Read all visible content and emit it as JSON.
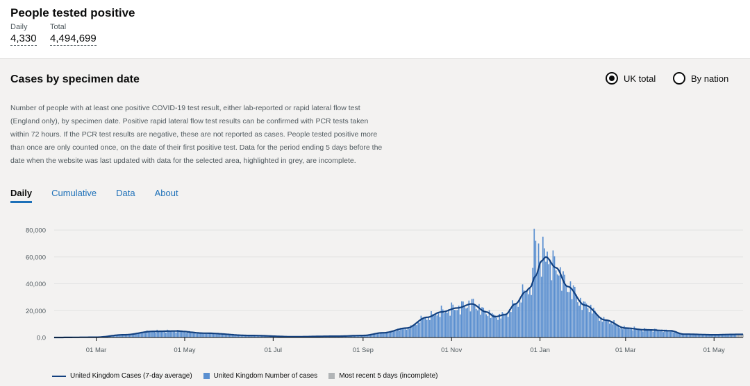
{
  "header": {
    "title": "People tested positive",
    "daily_label": "Daily",
    "daily_value": "4,330",
    "total_label": "Total",
    "total_value": "4,494,699"
  },
  "card": {
    "title": "Cases by specimen date",
    "radio_uk": "UK total",
    "radio_nation": "By nation",
    "description": "Number of people with at least one positive COVID-19 test result, either lab-reported or rapid lateral flow test (England only), by specimen date. Positive rapid lateral flow test results can be confirmed with PCR tests taken within 72 hours. If the PCR test results are negative, these are not reported as cases. People tested positive more than once are only counted once, on the date of their first positive test. Data for the period ending 5 days before the date when the website was last updated with data for the selected area, highlighted in grey, are incomplete.",
    "tabs": [
      "Daily",
      "Cumulative",
      "Data",
      "About"
    ]
  },
  "colors": {
    "line": "#12407f",
    "bar": "#5a8fd0",
    "incomplete": "#b1b4b6",
    "tab_accent": "#1d70b8"
  },
  "chart_data": {
    "type": "bar",
    "x_start": "2020-02-01",
    "x_end": "2021-05-21",
    "x_ticks": [
      {
        "date": "2020-03-01",
        "label": "01 Mar"
      },
      {
        "date": "2020-05-01",
        "label": "01 May"
      },
      {
        "date": "2020-07-01",
        "label": "01 Jul"
      },
      {
        "date": "2020-09-01",
        "label": "01 Sep"
      },
      {
        "date": "2020-11-01",
        "label": "01 Nov"
      },
      {
        "date": "2021-01-01",
        "label": "01 Jan"
      },
      {
        "date": "2021-03-01",
        "label": "01 Mar"
      },
      {
        "date": "2021-05-01",
        "label": "01 May"
      }
    ],
    "y_ticks": [
      "0.0",
      "20,000",
      "40,000",
      "60,000",
      "80,000"
    ],
    "ylim": [
      0,
      80000
    ],
    "series": [
      {
        "name": "United Kingdom Cases (7-day average)",
        "kind": "line"
      },
      {
        "name": "United Kingdom Number of cases",
        "kind": "bar"
      },
      {
        "name": "Most recent 5 days (incomplete)",
        "kind": "bar-incomplete"
      }
    ],
    "average_anchors": [
      [
        "2020-02-01",
        0
      ],
      [
        "2020-03-01",
        200
      ],
      [
        "2020-03-20",
        2000
      ],
      [
        "2020-04-10",
        4600
      ],
      [
        "2020-04-25",
        4800
      ],
      [
        "2020-05-15",
        3200
      ],
      [
        "2020-06-15",
        1500
      ],
      [
        "2020-07-15",
        600
      ],
      [
        "2020-08-15",
        1000
      ],
      [
        "2020-09-01",
        1500
      ],
      [
        "2020-09-15",
        3500
      ],
      [
        "2020-10-01",
        7000
      ],
      [
        "2020-10-15",
        15000
      ],
      [
        "2020-10-25",
        19000
      ],
      [
        "2020-11-05",
        22000
      ],
      [
        "2020-11-15",
        25000
      ],
      [
        "2020-11-25",
        19000
      ],
      [
        "2020-12-01",
        15500
      ],
      [
        "2020-12-08",
        17000
      ],
      [
        "2020-12-15",
        25000
      ],
      [
        "2020-12-22",
        34000
      ],
      [
        "2020-12-25",
        37000
      ],
      [
        "2020-12-29",
        46000
      ],
      [
        "2021-01-02",
        57000
      ],
      [
        "2021-01-05",
        60000
      ],
      [
        "2021-01-12",
        52000
      ],
      [
        "2021-01-20",
        38000
      ],
      [
        "2021-02-01",
        24000
      ],
      [
        "2021-02-15",
        13000
      ],
      [
        "2021-03-01",
        7000
      ],
      [
        "2021-03-15",
        5700
      ],
      [
        "2021-04-01",
        5000
      ],
      [
        "2021-04-10",
        2500
      ],
      [
        "2021-05-01",
        2000
      ],
      [
        "2021-05-16",
        2300
      ],
      [
        "2021-05-21",
        2300
      ]
    ],
    "spikes": [
      [
        "2020-12-28",
        81000
      ],
      [
        "2020-12-31",
        70000
      ],
      [
        "2021-01-03",
        75000
      ],
      [
        "2021-01-06",
        64000
      ],
      [
        "2021-01-08",
        58000
      ],
      [
        "2020-12-29",
        72000
      ]
    ]
  }
}
